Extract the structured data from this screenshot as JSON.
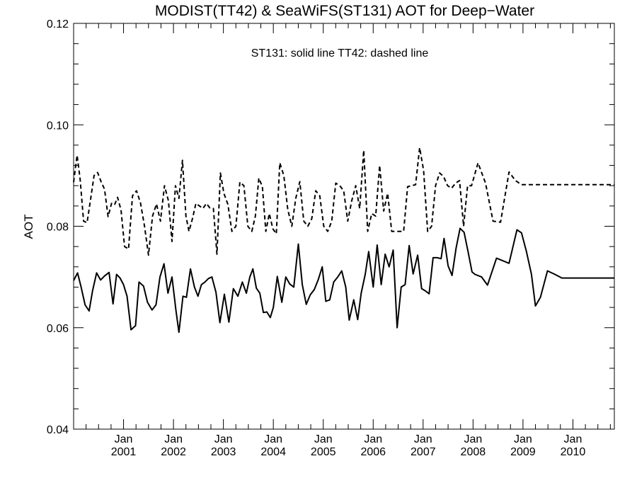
{
  "chart_data": {
    "type": "line",
    "title": "MODIST(TT42) & SeaWiFS(ST131)  AOT for Deep−Water",
    "xlabel": "",
    "ylabel": "AOT",
    "annotation": "ST131: solid line   TT42: dashed line",
    "xlim": [
      2000.0,
      2010.83
    ],
    "ylim": [
      0.04,
      0.12
    ],
    "yticks": [
      "0.04",
      "0.06",
      "0.08",
      "0.10",
      "0.12"
    ],
    "xticks": [
      {
        "month": "Jan",
        "year": "2001",
        "x": 2001.0
      },
      {
        "month": "Jan",
        "year": "2002",
        "x": 2002.0
      },
      {
        "month": "Jan",
        "year": "2003",
        "x": 2003.0
      },
      {
        "month": "Jan",
        "year": "2004",
        "x": 2004.0
      },
      {
        "month": "Jan",
        "year": "2005",
        "x": 2005.0
      },
      {
        "month": "Jan",
        "year": "2006",
        "x": 2006.0
      },
      {
        "month": "Jan",
        "year": "2007",
        "x": 2007.0
      },
      {
        "month": "Jan",
        "year": "2008",
        "x": 2008.0
      },
      {
        "month": "Jan",
        "year": "2009",
        "x": 2009.0
      },
      {
        "month": "Jan",
        "year": "2010",
        "x": 2010.0
      }
    ],
    "grid": false,
    "series": [
      {
        "line_style": "solid",
        "color": "#000000",
        "x": [
          2000.0,
          2000.08,
          2000.15,
          2000.23,
          2000.31,
          2000.38,
          2000.46,
          2000.54,
          2000.62,
          2000.71,
          2000.79,
          2000.86,
          2000.93,
          2001.0,
          2001.07,
          2001.15,
          2001.24,
          2001.31,
          2001.4,
          2001.48,
          2001.57,
          2001.65,
          2001.73,
          2001.81,
          2001.89,
          2001.97,
          2002.05,
          2002.11,
          2002.19,
          2002.26,
          2002.34,
          2002.42,
          2002.49,
          2002.56,
          2002.63,
          2002.7,
          2002.77,
          2002.85,
          2002.93,
          2003.02,
          2003.11,
          2003.2,
          2003.29,
          2003.38,
          2003.46,
          2003.53,
          2003.59,
          2003.66,
          2003.73,
          2003.8,
          2003.87,
          2003.94,
          2004.0,
          2004.08,
          2004.17,
          2004.25,
          2004.33,
          2004.41,
          2004.5,
          2004.58,
          2004.66,
          2004.74,
          2004.82,
          2004.9,
          2004.98,
          2005.05,
          2005.13,
          2005.21,
          2005.29,
          2005.37,
          2005.45,
          2005.52,
          2005.61,
          2005.69,
          2005.76,
          2005.84,
          2005.91,
          2006.0,
          2006.08,
          2006.16,
          2006.24,
          2006.32,
          2006.4,
          2006.48,
          2006.56,
          2006.64,
          2006.72,
          2006.8,
          2006.89,
          2006.97,
          2007.04,
          2007.12,
          2007.2,
          2007.28,
          2007.36,
          2007.42,
          2007.5,
          2007.58,
          2007.66,
          2007.74,
          2007.82,
          2007.9,
          2007.98,
          2008.04,
          2008.17,
          2008.29,
          2008.47,
          2008.72,
          2008.88,
          2008.97,
          2009.07,
          2009.17,
          2009.25,
          2009.35,
          2009.49,
          2009.64,
          2009.78,
          2009.93,
          2010.0,
          2010.06,
          2010.14,
          2010.22,
          2010.3,
          2010.42,
          2010.52,
          2010.61,
          2010.69,
          2010.83
        ],
        "values": [
          0.0693,
          0.0708,
          0.068,
          0.0645,
          0.0633,
          0.0673,
          0.0708,
          0.0694,
          0.0702,
          0.0709,
          0.0647,
          0.0705,
          0.0698,
          0.0685,
          0.0662,
          0.0596,
          0.0604,
          0.069,
          0.0682,
          0.065,
          0.0635,
          0.0645,
          0.07,
          0.0726,
          0.0668,
          0.07,
          0.0634,
          0.0591,
          0.0662,
          0.066,
          0.0716,
          0.068,
          0.0662,
          0.0685,
          0.069,
          0.0697,
          0.07,
          0.067,
          0.061,
          0.0666,
          0.0611,
          0.0677,
          0.0662,
          0.069,
          0.0668,
          0.07,
          0.0716,
          0.0678,
          0.0668,
          0.063,
          0.0631,
          0.062,
          0.064,
          0.0701,
          0.065,
          0.07,
          0.0686,
          0.068,
          0.0765,
          0.0685,
          0.0646,
          0.0665,
          0.0675,
          0.0695,
          0.072,
          0.0652,
          0.0655,
          0.069,
          0.07,
          0.0712,
          0.068,
          0.0615,
          0.0655,
          0.0616,
          0.0668,
          0.0705,
          0.075,
          0.068,
          0.0763,
          0.0685,
          0.0745,
          0.072,
          0.0753,
          0.06,
          0.068,
          0.0685,
          0.0762,
          0.0706,
          0.0743,
          0.0677,
          0.0673,
          0.0667,
          0.0738,
          0.0738,
          0.0736,
          0.0776,
          0.0722,
          0.0703,
          0.0757,
          0.0796,
          0.0788,
          0.075,
          0.071,
          0.0705,
          0.07,
          0.0684,
          0.0737,
          0.0727,
          0.0793,
          0.0787,
          0.075,
          0.0705,
          0.0643,
          0.066,
          0.0712,
          0.0705,
          0.0698,
          0.0698,
          0.0698,
          0.0698,
          0.0698,
          0.0698,
          0.0698,
          0.0698,
          0.0698,
          0.0698,
          0.0698,
          0.0698
        ]
      },
      {
        "line_style": "dashed",
        "color": "#000000",
        "x": [
          2000.0,
          2000.07,
          2000.13,
          2000.2,
          2000.27,
          2000.34,
          2000.41,
          2000.48,
          2000.55,
          2000.62,
          2000.69,
          2000.76,
          2000.82,
          2000.88,
          2000.95,
          2001.02,
          2001.1,
          2001.18,
          2001.26,
          2001.34,
          2001.42,
          2001.5,
          2001.58,
          2001.66,
          2001.74,
          2001.82,
          2001.9,
          2001.97,
          2002.04,
          2002.11,
          2002.18,
          2002.25,
          2002.31,
          2002.38,
          2002.45,
          2002.52,
          2002.59,
          2002.66,
          2002.73,
          2002.8,
          2002.87,
          2002.94,
          2003.01,
          2003.09,
          2003.17,
          2003.25,
          2003.33,
          2003.41,
          2003.49,
          2003.57,
          2003.64,
          2003.71,
          2003.78,
          2003.85,
          2003.92,
          2003.99,
          2004.06,
          2004.13,
          2004.21,
          2004.29,
          2004.37,
          2004.45,
          2004.53,
          2004.61,
          2004.69,
          2004.77,
          2004.85,
          2004.93,
          2005.01,
          2005.09,
          2005.17,
          2005.25,
          2005.33,
          2005.41,
          2005.49,
          2005.57,
          2005.65,
          2005.73,
          2005.81,
          2005.89,
          2005.97,
          2006.05,
          2006.13,
          2006.21,
          2006.29,
          2006.37,
          2006.45,
          2006.53,
          2006.61,
          2006.69,
          2006.77,
          2006.85,
          2006.93,
          2007.01,
          2007.09,
          2007.17,
          2007.25,
          2007.33,
          2007.41,
          2007.49,
          2007.57,
          2007.65,
          2007.73,
          2007.81,
          2007.89,
          2007.97,
          2008.1,
          2008.25,
          2008.4,
          2008.55,
          2008.72,
          2008.85,
          2008.97,
          2009.1,
          2009.25,
          2009.4,
          2009.55,
          2009.7,
          2009.85,
          2010.0,
          2010.1,
          2010.2,
          2010.3,
          2010.4,
          2010.5,
          2010.6,
          2010.7,
          2010.83
        ],
        "values": [
          0.0887,
          0.094,
          0.0893,
          0.081,
          0.0807,
          0.0853,
          0.09,
          0.0906,
          0.0888,
          0.0873,
          0.0819,
          0.0845,
          0.0842,
          0.0857,
          0.0832,
          0.076,
          0.0755,
          0.086,
          0.087,
          0.0846,
          0.08,
          0.0743,
          0.082,
          0.0844,
          0.081,
          0.088,
          0.085,
          0.077,
          0.088,
          0.0855,
          0.093,
          0.082,
          0.079,
          0.0815,
          0.0845,
          0.084,
          0.0835,
          0.0845,
          0.0836,
          0.0835,
          0.0745,
          0.0905,
          0.0865,
          0.0843,
          0.079,
          0.08,
          0.0887,
          0.088,
          0.08,
          0.079,
          0.082,
          0.0895,
          0.0878,
          0.079,
          0.0825,
          0.0795,
          0.0785,
          0.0925,
          0.09,
          0.0833,
          0.08,
          0.0855,
          0.0888,
          0.081,
          0.08,
          0.0815,
          0.087,
          0.086,
          0.08,
          0.079,
          0.081,
          0.0885,
          0.088,
          0.087,
          0.081,
          0.085,
          0.088,
          0.0835,
          0.095,
          0.079,
          0.0825,
          0.082,
          0.092,
          0.083,
          0.0865,
          0.079,
          0.079,
          0.079,
          0.079,
          0.0878,
          0.088,
          0.0882,
          0.0955,
          0.091,
          0.079,
          0.08,
          0.088,
          0.0905,
          0.0898,
          0.088,
          0.0875,
          0.0885,
          0.089,
          0.08,
          0.088,
          0.088,
          0.0925,
          0.0885,
          0.081,
          0.0808,
          0.0907,
          0.089,
          0.0882,
          0.0882,
          0.0882,
          0.0882,
          0.0882,
          0.0882,
          0.0882,
          0.0882,
          0.0882,
          0.0882,
          0.0882,
          0.0882,
          0.0882,
          0.0882,
          0.0882,
          0.0882
        ]
      }
    ]
  }
}
